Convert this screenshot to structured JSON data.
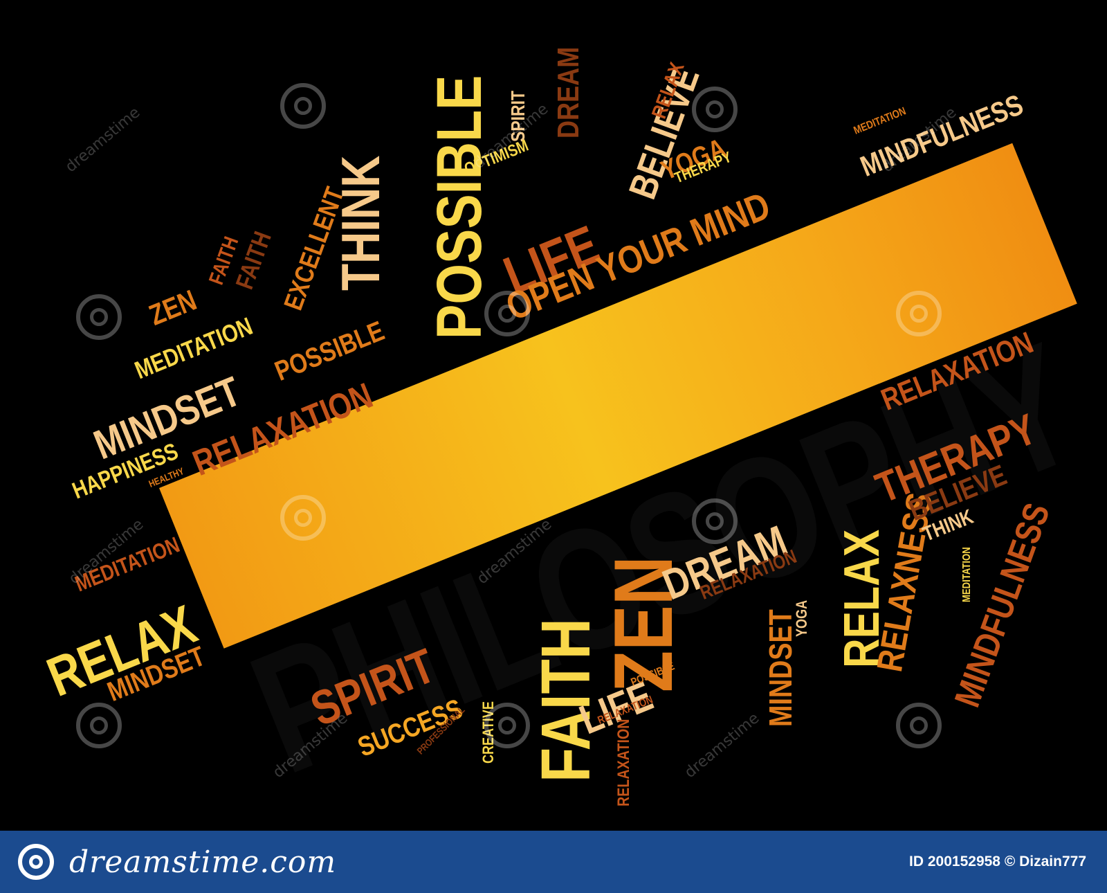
{
  "palette": {
    "background": "#000000",
    "banner_gradient": [
      "#f29a14",
      "#f7c21d",
      "#f08e12"
    ],
    "word_colors": [
      "#f9d84a",
      "#f5a623",
      "#e07b1a",
      "#c4541a",
      "#8a3a12",
      "#f6c98a"
    ],
    "footer": "#1b4b8f"
  },
  "main_word": "PHILOSOPHY",
  "words": [
    {
      "text": "POSSIBLE"
    },
    {
      "text": "THINK"
    },
    {
      "text": "EXCELLENT"
    },
    {
      "text": "FAITH"
    },
    {
      "text": "FAITH"
    },
    {
      "text": "ZEN"
    },
    {
      "text": "MEDITATION"
    },
    {
      "text": "MINDSET"
    },
    {
      "text": "POSSIBLE"
    },
    {
      "text": "RELAXATION"
    },
    {
      "text": "HAPPINESS"
    },
    {
      "text": "HEALTHY"
    },
    {
      "text": "SPIRIT"
    },
    {
      "text": "DREAM"
    },
    {
      "text": "OPTIMISM"
    },
    {
      "text": "LIFE"
    },
    {
      "text": "BELIEVE"
    },
    {
      "text": "RELAX"
    },
    {
      "text": "YOGA"
    },
    {
      "text": "THERAPY"
    },
    {
      "text": "MEDITATION"
    },
    {
      "text": "MINDFULNESS"
    },
    {
      "text": "OPEN YOUR MIND"
    },
    {
      "text": "MEDITATION"
    },
    {
      "text": "RELAX"
    },
    {
      "text": "MINDSET"
    },
    {
      "text": "SPIRIT"
    },
    {
      "text": "SUCCESS"
    },
    {
      "text": "PROFESSIONAL"
    },
    {
      "text": "CREATIVE"
    },
    {
      "text": "FAITH"
    },
    {
      "text": "ZEN"
    },
    {
      "text": "LIFE"
    },
    {
      "text": "POSSIBLE"
    },
    {
      "text": "RELAXATION"
    },
    {
      "text": "RELAXATION"
    },
    {
      "text": "DREAM"
    },
    {
      "text": "RELAXATION"
    },
    {
      "text": "MINDSET"
    },
    {
      "text": "YOGA"
    },
    {
      "text": "RELAX"
    },
    {
      "text": "RELAXATION"
    },
    {
      "text": "RELAXNESS"
    },
    {
      "text": "MINDFULNESS"
    },
    {
      "text": "MEDITATION"
    },
    {
      "text": "THERAPY"
    },
    {
      "text": "BELIEVE"
    },
    {
      "text": "THINK"
    }
  ],
  "watermark_text": "dreamstime",
  "footer": {
    "brand": "dreamstime.com",
    "credit": "ID 200152958 © Dizain777"
  }
}
